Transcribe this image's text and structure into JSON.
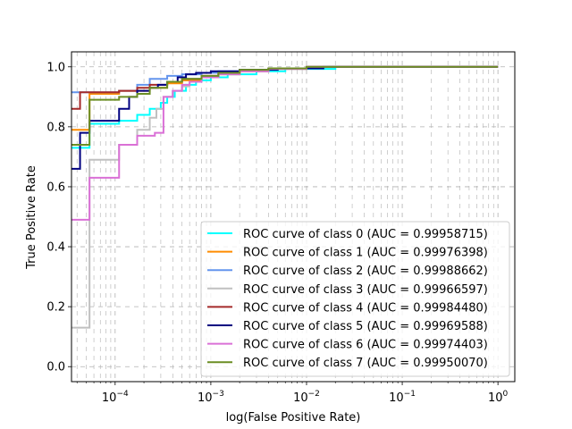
{
  "chart_data": {
    "type": "line",
    "title": "",
    "xlabel": "log(False Positive Rate)",
    "ylabel": "True Positive Rate",
    "xscale": "log",
    "xlim": [
      3.5e-05,
      1.5
    ],
    "ylim": [
      -0.05,
      1.05
    ],
    "grid": true,
    "legend_position": "lower-right",
    "x_ticks": [
      {
        "value": 0.0001,
        "base": "10",
        "exp": "−4"
      },
      {
        "value": 0.001,
        "base": "10",
        "exp": "−3"
      },
      {
        "value": 0.01,
        "base": "10",
        "exp": "−2"
      },
      {
        "value": 0.1,
        "base": "10",
        "exp": "−1"
      },
      {
        "value": 1,
        "base": "10",
        "exp": "0"
      }
    ],
    "y_ticks": [
      {
        "value": 0.0,
        "label": "0.0"
      },
      {
        "value": 0.2,
        "label": "0.2"
      },
      {
        "value": 0.4,
        "label": "0.4"
      },
      {
        "value": 0.6,
        "label": "0.6"
      },
      {
        "value": 0.8,
        "label": "0.8"
      },
      {
        "value": 1.0,
        "label": "1.0"
      }
    ],
    "series": [
      {
        "name": "ROC curve of class 0 (AUC = 0.99958715)",
        "color": "#00ffff",
        "x": [
          3e-05,
          5.4e-05,
          5.4e-05,
          0.00011,
          0.00011,
          0.00017,
          0.00017,
          0.00023,
          0.00023,
          0.0003,
          0.0003,
          0.00035,
          0.00035,
          0.00042,
          0.00042,
          0.00055,
          0.00055,
          0.0007,
          0.0007,
          0.001,
          0.001,
          0.0015,
          0.0015,
          0.003,
          0.003,
          0.006,
          0.006,
          0.02,
          0.02,
          1.0
        ],
        "y": [
          0.73,
          0.73,
          0.81,
          0.81,
          0.82,
          0.82,
          0.84,
          0.84,
          0.86,
          0.86,
          0.88,
          0.88,
          0.9,
          0.9,
          0.92,
          0.92,
          0.94,
          0.94,
          0.955,
          0.955,
          0.965,
          0.965,
          0.975,
          0.975,
          0.985,
          0.985,
          0.993,
          0.993,
          1.0,
          1.0
        ]
      },
      {
        "name": "ROC curve of class 1 (AUC = 0.99976398)",
        "color": "#ff8c00",
        "x": [
          3e-05,
          5.4e-05,
          5.4e-05,
          0.00011,
          0.00011,
          0.00023,
          0.00023,
          0.00035,
          0.00035,
          0.0005,
          0.0005,
          0.0008,
          0.0008,
          0.0012,
          0.0012,
          0.002,
          0.002,
          0.004,
          0.004,
          0.01,
          0.01,
          1.0
        ],
        "y": [
          0.79,
          0.79,
          0.91,
          0.91,
          0.92,
          0.92,
          0.93,
          0.93,
          0.945,
          0.945,
          0.955,
          0.955,
          0.965,
          0.965,
          0.975,
          0.975,
          0.985,
          0.985,
          0.993,
          0.993,
          1.0,
          1.0
        ]
      },
      {
        "name": "ROC curve of class 2 (AUC = 0.99988662)",
        "color": "#6495ed",
        "x": [
          3e-05,
          0.00011,
          0.00011,
          0.00017,
          0.00017,
          0.00023,
          0.00023,
          0.00035,
          0.00035,
          0.0005,
          0.0005,
          0.0008,
          0.0008,
          0.0012,
          0.0012,
          0.002,
          0.002,
          0.004,
          0.004,
          0.01,
          0.01,
          1.0
        ],
        "y": [
          0.915,
          0.915,
          0.92,
          0.92,
          0.94,
          0.94,
          0.96,
          0.96,
          0.97,
          0.97,
          0.975,
          0.975,
          0.98,
          0.98,
          0.985,
          0.985,
          0.99,
          0.99,
          0.995,
          0.995,
          1.0,
          1.0
        ]
      },
      {
        "name": "ROC curve of class 3 (AUC = 0.99966597)",
        "color": "#c0c0c0",
        "x": [
          3e-05,
          5.4e-05,
          5.4e-05,
          0.00011,
          0.00011,
          0.00017,
          0.00017,
          0.00023,
          0.00023,
          0.00027,
          0.00027,
          0.00032,
          0.00032,
          0.0004,
          0.0004,
          0.0005,
          0.0005,
          0.0006,
          0.0006,
          0.0008,
          0.0008,
          0.0012,
          0.0012,
          0.002,
          0.002,
          0.004,
          0.004,
          0.01,
          0.01,
          1.0
        ],
        "y": [
          0.13,
          0.13,
          0.69,
          0.69,
          0.74,
          0.74,
          0.79,
          0.79,
          0.83,
          0.83,
          0.86,
          0.86,
          0.9,
          0.9,
          0.92,
          0.92,
          0.935,
          0.935,
          0.95,
          0.95,
          0.965,
          0.965,
          0.975,
          0.975,
          0.985,
          0.985,
          0.993,
          0.993,
          1.0,
          1.0
        ]
      },
      {
        "name": "ROC curve of class 4 (AUC = 0.99984480)",
        "color": "#a52a2a",
        "x": [
          3e-05,
          4.3e-05,
          4.3e-05,
          0.00011,
          0.00011,
          0.00017,
          0.00017,
          0.00023,
          0.00023,
          0.00035,
          0.00035,
          0.0005,
          0.0005,
          0.0008,
          0.0008,
          0.0012,
          0.0012,
          0.002,
          0.002,
          0.004,
          0.004,
          0.01,
          0.01,
          1.0
        ],
        "y": [
          0.86,
          0.86,
          0.915,
          0.915,
          0.92,
          0.92,
          0.93,
          0.93,
          0.94,
          0.94,
          0.95,
          0.95,
          0.96,
          0.96,
          0.97,
          0.97,
          0.98,
          0.98,
          0.99,
          0.99,
          0.995,
          0.995,
          1.0,
          1.0
        ]
      },
      {
        "name": "ROC curve of class 5 (AUC = 0.99969588)",
        "color": "#000080",
        "x": [
          3e-05,
          4.3e-05,
          4.3e-05,
          5.4e-05,
          5.4e-05,
          0.00011,
          0.00011,
          0.00014,
          0.00014,
          0.00017,
          0.00017,
          0.00023,
          0.00023,
          0.00028,
          0.00028,
          0.00035,
          0.00035,
          0.00045,
          0.00045,
          0.00055,
          0.00055,
          0.0007,
          0.0007,
          0.001,
          0.001,
          0.002,
          0.002,
          0.005,
          0.005,
          0.015,
          0.015,
          1.0
        ],
        "y": [
          0.66,
          0.66,
          0.78,
          0.78,
          0.82,
          0.82,
          0.86,
          0.86,
          0.9,
          0.9,
          0.92,
          0.92,
          0.93,
          0.93,
          0.94,
          0.94,
          0.95,
          0.95,
          0.965,
          0.965,
          0.975,
          0.975,
          0.98,
          0.98,
          0.985,
          0.985,
          0.99,
          0.99,
          0.995,
          0.995,
          1.0,
          1.0
        ]
      },
      {
        "name": "ROC curve of class 6 (AUC = 0.99974403)",
        "color": "#da70d6",
        "x": [
          3e-05,
          5.4e-05,
          5.4e-05,
          0.00011,
          0.00011,
          0.00017,
          0.00017,
          0.00026,
          0.00026,
          0.00032,
          0.00032,
          0.0004,
          0.0004,
          0.0005,
          0.0005,
          0.0006,
          0.0006,
          0.0008,
          0.0008,
          0.0012,
          0.0012,
          0.002,
          0.002,
          0.004,
          0.004,
          0.01,
          0.01,
          1.0
        ],
        "y": [
          0.49,
          0.49,
          0.63,
          0.63,
          0.74,
          0.74,
          0.77,
          0.77,
          0.78,
          0.78,
          0.9,
          0.9,
          0.92,
          0.92,
          0.94,
          0.94,
          0.95,
          0.95,
          0.965,
          0.965,
          0.975,
          0.975,
          0.985,
          0.985,
          0.993,
          0.993,
          1.0,
          1.0
        ]
      },
      {
        "name": "ROC curve of class 7 (AUC = 0.99950070)",
        "color": "#6b8e23",
        "x": [
          3e-05,
          5.4e-05,
          5.4e-05,
          0.00011,
          0.00011,
          0.00017,
          0.00017,
          0.00023,
          0.00023,
          0.00035,
          0.00035,
          0.0005,
          0.0005,
          0.0008,
          0.0008,
          0.0012,
          0.0012,
          0.002,
          0.002,
          0.004,
          0.004,
          0.01,
          0.01,
          1.0
        ],
        "y": [
          0.74,
          0.74,
          0.89,
          0.89,
          0.9,
          0.9,
          0.91,
          0.91,
          0.93,
          0.93,
          0.95,
          0.95,
          0.96,
          0.96,
          0.97,
          0.97,
          0.98,
          0.98,
          0.99,
          0.99,
          0.995,
          0.995,
          1.0,
          1.0
        ]
      }
    ]
  }
}
